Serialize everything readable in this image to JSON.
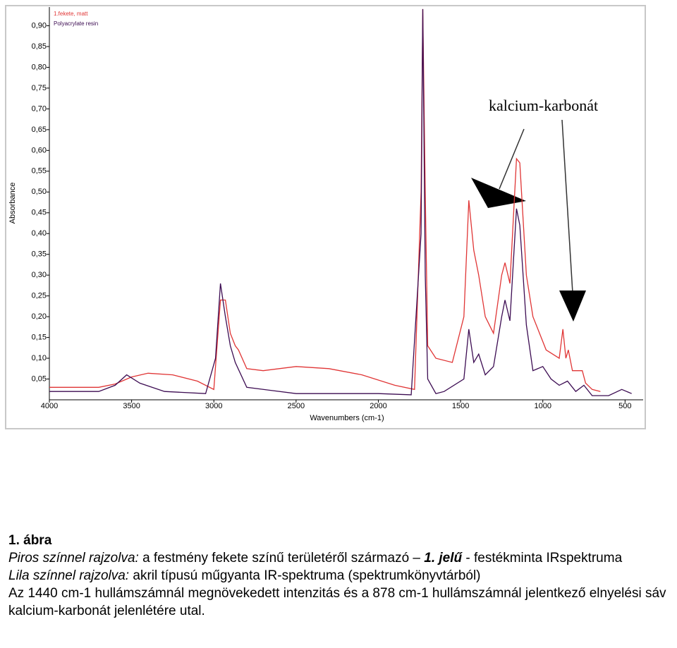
{
  "chart_data": {
    "type": "line",
    "y_label": "Absorbance",
    "x_label": "Wavenumbers (cm-1)",
    "annotation": "kalcium-karbonát",
    "xlim": [
      4000,
      390
    ],
    "ylim": [
      0,
      0.945
    ],
    "xticks": [
      4000,
      3500,
      3000,
      2500,
      2000,
      1500,
      1000,
      500
    ],
    "yticks": [
      {
        "value": 0.05,
        "label": "0,05"
      },
      {
        "value": 0.1,
        "label": "0,10"
      },
      {
        "value": 0.15,
        "label": "0,15"
      },
      {
        "value": 0.2,
        "label": "0,20"
      },
      {
        "value": 0.25,
        "label": "0,25"
      },
      {
        "value": 0.3,
        "label": "0,30"
      },
      {
        "value": 0.35,
        "label": "0,35"
      },
      {
        "value": 0.4,
        "label": "0,40"
      },
      {
        "value": 0.45,
        "label": "0,45"
      },
      {
        "value": 0.5,
        "label": "0,50"
      },
      {
        "value": 0.55,
        "label": "0,55"
      },
      {
        "value": 0.6,
        "label": "0,60"
      },
      {
        "value": 0.65,
        "label": "0,65"
      },
      {
        "value": 0.7,
        "label": "0,70"
      },
      {
        "value": 0.75,
        "label": "0,75"
      },
      {
        "value": 0.8,
        "label": "0,80"
      },
      {
        "value": 0.85,
        "label": "0,85"
      },
      {
        "value": 0.9,
        "label": "0,90"
      }
    ],
    "grid": false,
    "series": [
      {
        "name": "1.fekete, matt",
        "color": "#e03535",
        "x": [
          4000,
          3700,
          3600,
          3500,
          3400,
          3250,
          3100,
          3000,
          2960,
          2930,
          2900,
          2870,
          2850,
          2800,
          2700,
          2500,
          2300,
          2100,
          1900,
          1780,
          1740,
          1730,
          1715,
          1700,
          1650,
          1550,
          1480,
          1450,
          1420,
          1390,
          1350,
          1300,
          1250,
          1230,
          1200,
          1160,
          1140,
          1100,
          1060,
          1020,
          980,
          900,
          878,
          860,
          845,
          820,
          760,
          740,
          700,
          650
        ],
        "values": [
          0.03,
          0.03,
          0.038,
          0.055,
          0.064,
          0.06,
          0.045,
          0.025,
          0.24,
          0.24,
          0.16,
          0.13,
          0.12,
          0.075,
          0.07,
          0.08,
          0.075,
          0.06,
          0.035,
          0.025,
          0.5,
          0.94,
          0.5,
          0.13,
          0.1,
          0.09,
          0.2,
          0.48,
          0.36,
          0.3,
          0.2,
          0.16,
          0.3,
          0.33,
          0.28,
          0.58,
          0.57,
          0.3,
          0.2,
          0.16,
          0.12,
          0.1,
          0.17,
          0.1,
          0.12,
          0.07,
          0.07,
          0.04,
          0.025,
          0.02
        ]
      },
      {
        "name": "Polyacrylate resin",
        "color": "#3c0c52",
        "x": [
          4000,
          3700,
          3600,
          3530,
          3450,
          3300,
          3050,
          2990,
          2960,
          2930,
          2900,
          2870,
          2800,
          2500,
          2000,
          1800,
          1740,
          1730,
          1715,
          1700,
          1650,
          1600,
          1480,
          1450,
          1420,
          1390,
          1350,
          1300,
          1250,
          1230,
          1200,
          1160,
          1140,
          1100,
          1060,
          1000,
          950,
          900,
          850,
          800,
          750,
          700,
          600,
          520,
          460
        ],
        "values": [
          0.02,
          0.02,
          0.035,
          0.06,
          0.04,
          0.02,
          0.015,
          0.1,
          0.28,
          0.2,
          0.13,
          0.09,
          0.03,
          0.015,
          0.015,
          0.012,
          0.4,
          0.94,
          0.3,
          0.05,
          0.015,
          0.02,
          0.05,
          0.17,
          0.09,
          0.11,
          0.06,
          0.08,
          0.2,
          0.24,
          0.19,
          0.46,
          0.42,
          0.18,
          0.07,
          0.08,
          0.05,
          0.035,
          0.045,
          0.02,
          0.035,
          0.01,
          0.01,
          0.025,
          0.015
        ]
      }
    ]
  },
  "caption": {
    "figure_label": "1. ábra",
    "red_label": "Piros színnel rajzolva:",
    "red_text_1": " a festmény fekete színű területéről származó – ",
    "red_id": "1. jelű",
    "red_text_2": " - festékminta IRspektruma",
    "purple_label": "Lila színnel rajzolva:",
    "purple_text": " akril típusú műgyanta IR-spektruma (spektrumkönyvtárból)",
    "note": "Az 1440 cm-1 hullámszámnál megnövekedett intenzitás és a 878 cm-1 hullámszámnál jelentkező elnyelési sáv kalcium-karbonát jelenlétére utal."
  }
}
